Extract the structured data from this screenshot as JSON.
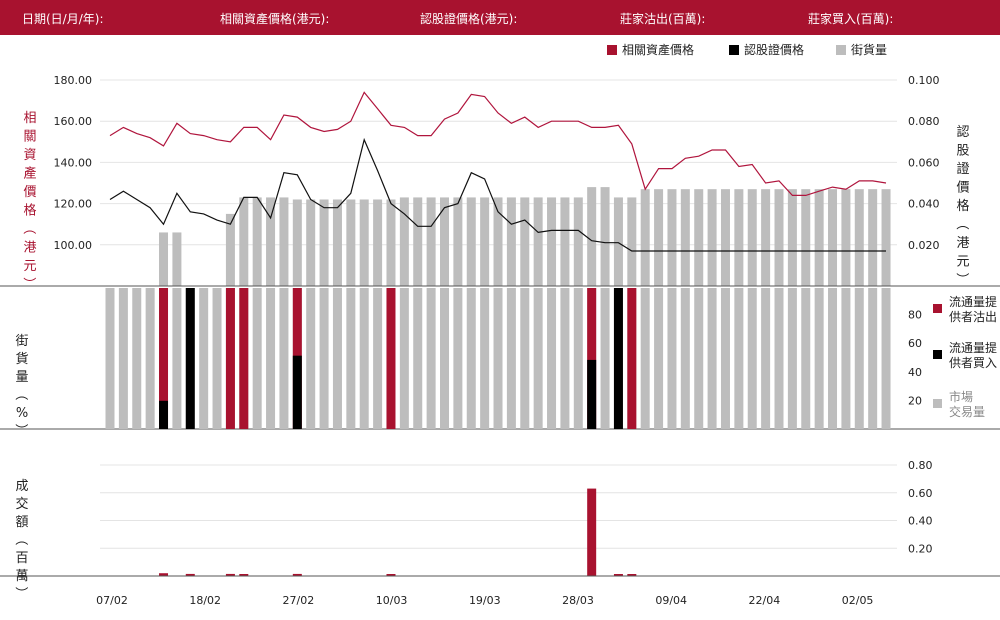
{
  "header": {
    "date_label": "日期(日/月/年):",
    "underlying_label": "相關資產價格(港元):",
    "warrant_label": "認股證價格(港元):",
    "sell_label": "莊家沽出(百萬):",
    "buy_label": "莊家買入(百萬):"
  },
  "colors": {
    "brand": "#a8122f",
    "underlying_line": "#b0153d",
    "warrant_line": "#111111",
    "outstanding_bar": "#bdbdbd",
    "lp_sell": "#a8122f",
    "lp_buy": "#000000"
  },
  "legend_top": [
    {
      "label": "相關資產價格",
      "color": "#a8122f"
    },
    {
      "label": "認股證價格",
      "color": "#000000"
    },
    {
      "label": "街貨量",
      "color": "#bdbdbd"
    }
  ],
  "legend_mid": [
    {
      "label": "流通量提\n供者沽出",
      "color": "#a8122f"
    },
    {
      "label": "流通量提\n供者買入",
      "color": "#000000"
    },
    {
      "label": "市場\n交易量",
      "color": "#bdbdbd"
    }
  ],
  "chart_data": [
    {
      "type": "line",
      "panel": "price",
      "ylabel_left": "相關資產價格（港元）",
      "ylabel_right": "認股證價格（港元）",
      "y_ticks_left": [
        "180.00",
        "160.00",
        "140.00",
        "120.00",
        "100.00"
      ],
      "y_ticks_right": [
        "0.100",
        "0.080",
        "0.060",
        "0.040",
        "0.020"
      ],
      "ylim_left": [
        80,
        180
      ],
      "ylim_right": [
        0,
        0.1
      ],
      "x_tick_labels": [
        "07/02",
        "18/02",
        "27/02",
        "10/03",
        "19/03",
        "28/03",
        "09/04",
        "22/04",
        "02/05"
      ],
      "series": [
        {
          "name": "相關資產價格",
          "axis": "left",
          "values": [
            153,
            157,
            154,
            152,
            148,
            159,
            154,
            153,
            151,
            150,
            157,
            157,
            151,
            163,
            162,
            157,
            155,
            156,
            160,
            174,
            166,
            158,
            157,
            153,
            153,
            161,
            164,
            173,
            172,
            164,
            159,
            162,
            157,
            160,
            160,
            160,
            157,
            157,
            158,
            149,
            127,
            137,
            137,
            142,
            143,
            146,
            146,
            138,
            139,
            130,
            131,
            124,
            124,
            126,
            128,
            127,
            131,
            131,
            130
          ],
          "color": "#b0153d"
        },
        {
          "name": "認股證價格",
          "axis": "right",
          "values": [
            0.042,
            0.046,
            0.042,
            0.038,
            0.03,
            0.045,
            0.036,
            0.035,
            0.032,
            0.03,
            0.043,
            0.043,
            0.033,
            0.055,
            0.054,
            0.042,
            0.038,
            0.038,
            0.045,
            0.071,
            0.056,
            0.04,
            0.035,
            0.029,
            0.029,
            0.038,
            0.04,
            0.055,
            0.052,
            0.036,
            0.03,
            0.032,
            0.026,
            0.027,
            0.027,
            0.027,
            0.022,
            0.021,
            0.021,
            0.017,
            0.017,
            0.017,
            0.017,
            0.017,
            0.017,
            0.017,
            0.017,
            0.017,
            0.017,
            0.017,
            0.017,
            0.017,
            0.017,
            0.017,
            0.017,
            0.017,
            0.017,
            0.017,
            0.017
          ],
          "color": "#111111"
        },
        {
          "name": "街貨量",
          "axis": "bars",
          "values": [
            0,
            0,
            0,
            0,
            26,
            26,
            0,
            0,
            0,
            35,
            43,
            43,
            43,
            43,
            42,
            42,
            42,
            42,
            42,
            42,
            42,
            42,
            43,
            43,
            43,
            43,
            43,
            43,
            43,
            43,
            43,
            43,
            43,
            43,
            43,
            43,
            48,
            48,
            43,
            43,
            47,
            47,
            47,
            47,
            47,
            47,
            47,
            47,
            47,
            47,
            47,
            47,
            47,
            47,
            47,
            47,
            47,
            47,
            47
          ],
          "color": "#bdbdbd"
        }
      ]
    },
    {
      "type": "bar",
      "panel": "percentage",
      "ylabel": "街貨量（%）",
      "y_ticks": [
        "80",
        "60",
        "40",
        "20"
      ],
      "ylim": [
        0,
        100
      ],
      "series": [
        {
          "name": "市場交易量",
          "values": [
            100,
            100,
            100,
            100,
            100,
            100,
            100,
            100,
            100,
            100,
            100,
            100,
            100,
            100,
            100,
            100,
            100,
            100,
            100,
            100,
            100,
            100,
            100,
            100,
            100,
            100,
            100,
            100,
            100,
            100,
            100,
            100,
            100,
            100,
            100,
            100,
            100,
            100,
            100,
            100,
            100,
            100,
            100,
            100,
            100,
            100,
            100,
            100,
            100,
            100,
            100,
            100,
            100,
            100,
            100,
            100,
            100,
            100,
            100
          ],
          "color": "#bdbdbd"
        },
        {
          "name": "流通量提供者沽出",
          "values": [
            0,
            0,
            0,
            0,
            100,
            0,
            0,
            0,
            0,
            100,
            100,
            0,
            0,
            0,
            100,
            0,
            0,
            0,
            0,
            0,
            0,
            100,
            0,
            0,
            0,
            0,
            0,
            0,
            0,
            0,
            0,
            0,
            0,
            0,
            0,
            0,
            100,
            0,
            0,
            100,
            0,
            0,
            0,
            0,
            0,
            0,
            0,
            0,
            0,
            0,
            0,
            0,
            0,
            0,
            0,
            0,
            0,
            0,
            0
          ],
          "color": "#a8122f"
        },
        {
          "name": "流通量提供者買入",
          "values": [
            0,
            0,
            0,
            0,
            20,
            0,
            100,
            0,
            0,
            0,
            0,
            0,
            0,
            0,
            52,
            0,
            0,
            0,
            0,
            0,
            0,
            0,
            0,
            0,
            0,
            0,
            0,
            0,
            0,
            0,
            0,
            0,
            0,
            0,
            0,
            0,
            49,
            0,
            100,
            0,
            0,
            0,
            0,
            0,
            0,
            0,
            0,
            0,
            0,
            0,
            0,
            0,
            0,
            0,
            0,
            0,
            0,
            0,
            0
          ],
          "color": "#000000"
        }
      ]
    },
    {
      "type": "bar",
      "panel": "turnover",
      "ylabel": "成交額（百萬）",
      "y_ticks": [
        "0.80",
        "0.60",
        "0.40",
        "0.20"
      ],
      "ylim": [
        0,
        0.8
      ],
      "series": [
        {
          "name": "成交額",
          "values": [
            0,
            0,
            0,
            0,
            0.02,
            0,
            0.015,
            0,
            0,
            0.015,
            0.01,
            0,
            0,
            0,
            0.015,
            0,
            0,
            0,
            0,
            0,
            0,
            0.01,
            0,
            0,
            0,
            0,
            0,
            0,
            0,
            0,
            0,
            0,
            0,
            0,
            0,
            0,
            0.63,
            0,
            0.01,
            0.01,
            0,
            0,
            0,
            0,
            0,
            0,
            0,
            0,
            0,
            0,
            0,
            0,
            0,
            0,
            0,
            0,
            0,
            0,
            0
          ],
          "color": "#a8122f"
        }
      ]
    }
  ]
}
